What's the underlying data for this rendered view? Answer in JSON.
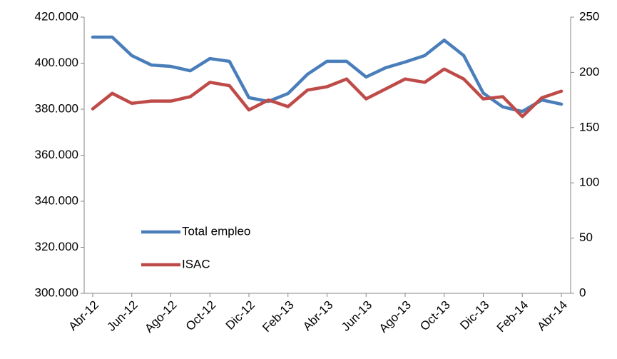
{
  "chart_data": {
    "type": "line",
    "categories": [
      "Abr-12",
      null,
      "Jun-12",
      null,
      "Ago-12",
      null,
      "Oct-12",
      null,
      "Dic-12",
      null,
      "Feb-13",
      null,
      "Abr-13",
      null,
      "Jun-13",
      null,
      "Ago-13",
      null,
      "Oct-13",
      null,
      "Dic-13",
      null,
      "Feb-14",
      null,
      "Abr-14"
    ],
    "series": [
      {
        "name": "Total empleo",
        "color": "#4a7ebb",
        "values": [
          411300,
          411300,
          403300,
          399200,
          398600,
          396700,
          402000,
          400800,
          385000,
          383400,
          386800,
          395200,
          400800,
          400800,
          394000,
          398000,
          400500,
          403300,
          410000,
          403300,
          387000,
          381000,
          379000,
          384000,
          382200
        ]
      },
      {
        "name": "ISAC",
        "color": "#be4b48",
        "axis": "y2",
        "values": [
          167,
          181,
          172,
          174,
          174,
          178,
          191,
          188,
          166,
          175,
          169,
          184,
          187,
          194,
          176,
          185,
          194,
          191,
          203,
          194,
          176,
          178,
          160,
          177,
          183
        ]
      }
    ],
    "ylim": [
      300000,
      420000
    ],
    "yticks": [
      {
        "value": 300000,
        "label": "300.000"
      },
      {
        "value": 320000,
        "label": "320.000"
      },
      {
        "value": 340000,
        "label": "340.000"
      },
      {
        "value": 360000,
        "label": "360.000"
      },
      {
        "value": 380000,
        "label": "380.000"
      },
      {
        "value": 400000,
        "label": "400.000"
      },
      {
        "value": 420000,
        "label": "420.000"
      }
    ],
    "y2lim": [
      0,
      250
    ],
    "y2ticks": [
      0,
      50,
      100,
      150,
      200,
      250
    ],
    "legend": "lower left",
    "grid": false
  }
}
